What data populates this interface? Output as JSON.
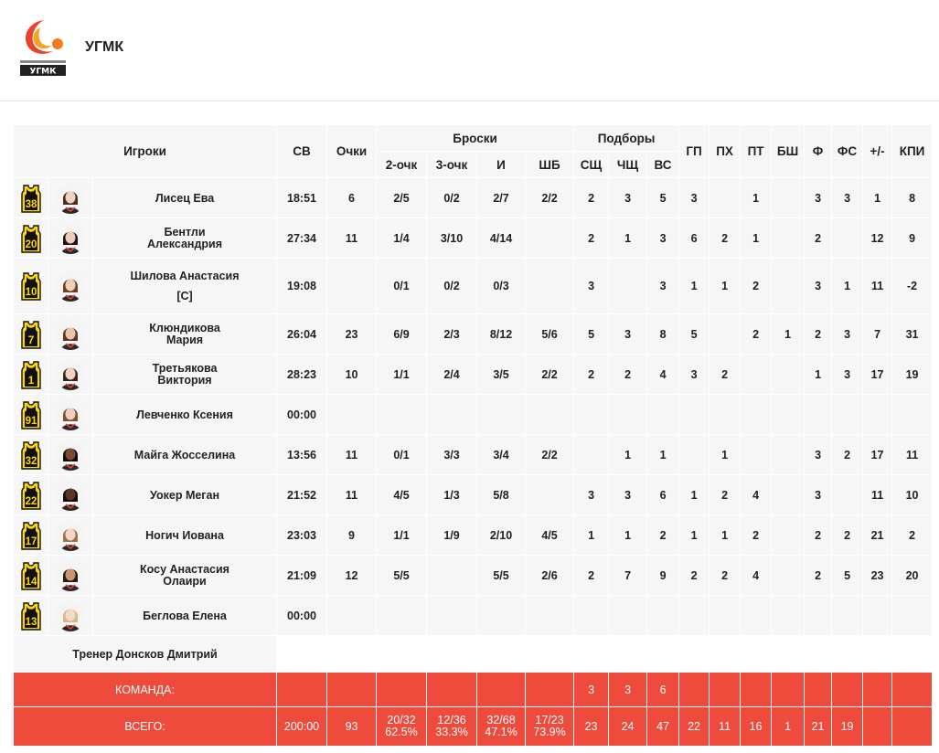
{
  "header": {
    "team_name": "УГМК",
    "logo_text_top": "БАСКЕТБОЛЬНЫЙ КЛУБ",
    "logo_text_main": "УГМК"
  },
  "colors": {
    "accent": "#ee4b3d",
    "jersey": "#ffd800",
    "row_bg": "#f6f6f6"
  },
  "columns": {
    "players": "Игроки",
    "time": "СВ",
    "points": "Очки",
    "shots_group": "Броски",
    "two": "2-очк",
    "three": "3-очк",
    "fg": "И",
    "ft": "ШБ",
    "reb_group": "Подборы",
    "oreb": "СЩ",
    "dreb": "ЧЩ",
    "treb": "ВС",
    "ast": "ГП",
    "stl": "ПХ",
    "tov": "ПТ",
    "blk": "БШ",
    "pf": "Ф",
    "fd": "ФС",
    "pm": "+/-",
    "eff": "КПИ"
  },
  "players": [
    {
      "number": "38",
      "name": "Лисец Ева",
      "captain": "",
      "time": "18:51",
      "points": "6",
      "two": "2/5",
      "three": "0/2",
      "fg": "2/7",
      "ft": "2/2",
      "oreb": "2",
      "dreb": "3",
      "treb": "5",
      "ast": "3",
      "stl": "",
      "tov": "1",
      "blk": "",
      "pf": "3",
      "fd": "3",
      "pm": "1",
      "eff": "8"
    },
    {
      "number": "20",
      "name": "Бентли\nАлександрия",
      "captain": "",
      "time": "27:34",
      "points": "11",
      "two": "1/4",
      "three": "3/10",
      "fg": "4/14",
      "ft": "",
      "oreb": "2",
      "dreb": "1",
      "treb": "3",
      "ast": "6",
      "stl": "2",
      "tov": "1",
      "blk": "",
      "pf": "2",
      "fd": "",
      "pm": "12",
      "eff": "9"
    },
    {
      "number": "10",
      "name": "Шилова Анастасия",
      "captain": "[C]",
      "time": "19:08",
      "points": "",
      "two": "0/1",
      "three": "0/2",
      "fg": "0/3",
      "ft": "",
      "oreb": "3",
      "dreb": "",
      "treb": "3",
      "ast": "1",
      "stl": "1",
      "tov": "2",
      "blk": "",
      "pf": "3",
      "fd": "1",
      "pm": "11",
      "eff": "-2"
    },
    {
      "number": "7",
      "name": "Клюндикова\nМария",
      "captain": "",
      "time": "26:04",
      "points": "23",
      "two": "6/9",
      "three": "2/3",
      "fg": "8/12",
      "ft": "5/6",
      "oreb": "5",
      "dreb": "3",
      "treb": "8",
      "ast": "5",
      "stl": "",
      "tov": "2",
      "blk": "1",
      "pf": "2",
      "fd": "3",
      "pm": "7",
      "eff": "31"
    },
    {
      "number": "1",
      "name": "Третьякова\nВиктория",
      "captain": "",
      "time": "28:23",
      "points": "10",
      "two": "1/1",
      "three": "2/4",
      "fg": "3/5",
      "ft": "2/2",
      "oreb": "2",
      "dreb": "2",
      "treb": "4",
      "ast": "3",
      "stl": "2",
      "tov": "",
      "blk": "",
      "pf": "1",
      "fd": "3",
      "pm": "17",
      "eff": "19"
    },
    {
      "number": "91",
      "name": "Левченко Ксения",
      "captain": "",
      "time": "00:00",
      "points": "",
      "two": "",
      "three": "",
      "fg": "",
      "ft": "",
      "oreb": "",
      "dreb": "",
      "treb": "",
      "ast": "",
      "stl": "",
      "tov": "",
      "blk": "",
      "pf": "",
      "fd": "",
      "pm": "",
      "eff": ""
    },
    {
      "number": "32",
      "name": "Майга Жосселина",
      "captain": "",
      "time": "13:56",
      "points": "11",
      "two": "0/1",
      "three": "3/3",
      "fg": "3/4",
      "ft": "2/2",
      "oreb": "",
      "dreb": "1",
      "treb": "1",
      "ast": "",
      "stl": "1",
      "tov": "",
      "blk": "",
      "pf": "3",
      "fd": "2",
      "pm": "17",
      "eff": "11"
    },
    {
      "number": "22",
      "name": "Уокер Меган",
      "captain": "",
      "time": "21:52",
      "points": "11",
      "two": "4/5",
      "three": "1/3",
      "fg": "5/8",
      "ft": "",
      "oreb": "3",
      "dreb": "3",
      "treb": "6",
      "ast": "1",
      "stl": "2",
      "tov": "4",
      "blk": "",
      "pf": "3",
      "fd": "",
      "pm": "11",
      "eff": "10"
    },
    {
      "number": "17",
      "name": "Ногич Иована",
      "captain": "",
      "time": "23:03",
      "points": "9",
      "two": "1/1",
      "three": "1/9",
      "fg": "2/10",
      "ft": "4/5",
      "oreb": "1",
      "dreb": "1",
      "treb": "2",
      "ast": "1",
      "stl": "1",
      "tov": "2",
      "blk": "",
      "pf": "2",
      "fd": "2",
      "pm": "21",
      "eff": "2"
    },
    {
      "number": "14",
      "name": "Косу Анастасия\nОлаири",
      "captain": "",
      "time": "21:09",
      "points": "12",
      "two": "5/5",
      "three": "",
      "fg": "5/5",
      "ft": "2/6",
      "oreb": "2",
      "dreb": "7",
      "treb": "9",
      "ast": "2",
      "stl": "2",
      "tov": "4",
      "blk": "",
      "pf": "2",
      "fd": "5",
      "pm": "23",
      "eff": "20"
    },
    {
      "number": "13",
      "name": "Беглова Елена",
      "captain": "",
      "time": "00:00",
      "points": "",
      "two": "",
      "three": "",
      "fg": "",
      "ft": "",
      "oreb": "",
      "dreb": "",
      "treb": "",
      "ast": "",
      "stl": "",
      "tov": "",
      "blk": "",
      "pf": "",
      "fd": "",
      "pm": "",
      "eff": ""
    }
  ],
  "coach": "Тренер Донсков Дмитрий",
  "team_row": {
    "label": "КОМАНДА:",
    "oreb": "3",
    "dreb": "3",
    "treb": "6"
  },
  "total_row": {
    "label": "ВСЕГО:",
    "time": "200:00",
    "points": "93",
    "two": "20/32",
    "two_pct": "62.5%",
    "three": "12/36",
    "three_pct": "33.3%",
    "fg": "32/68",
    "fg_pct": "47.1%",
    "ft": "17/23",
    "ft_pct": "73.9%",
    "oreb": "23",
    "dreb": "24",
    "treb": "47",
    "ast": "22",
    "stl": "11",
    "tov": "16",
    "blk": "1",
    "pf": "21",
    "fd": "19",
    "pm": "",
    "eff": ""
  }
}
